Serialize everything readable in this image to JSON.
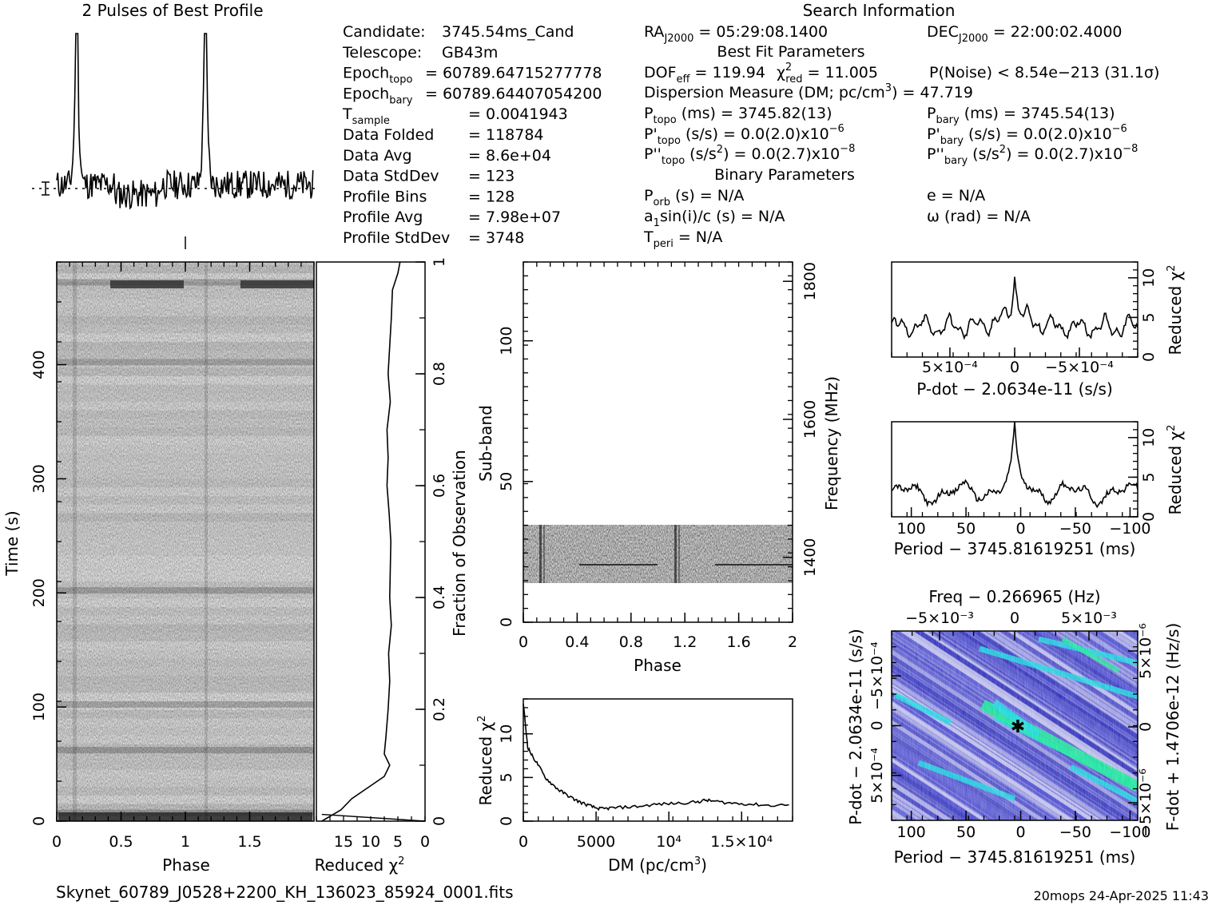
{
  "footer": {
    "filename": "Skynet_60789_J0528+2200_KH_136023_85924_0001.fits",
    "stamp": "20mops 24-Apr-2025 11:43"
  },
  "info": {
    "search_title": "Search Information",
    "col1": [
      {
        "label": "Candidate:",
        "sub": "",
        "value": "3745.54ms_Cand"
      },
      {
        "label": "Telescope:",
        "sub": "",
        "value": "GB43m"
      },
      {
        "label": "Epoch",
        "sub": "topo",
        "value": "= 60789.64715277778"
      },
      {
        "label": "Epoch",
        "sub": "bary",
        "value": "= 60789.64407054200"
      },
      {
        "label": "T",
        "sub": "sample",
        "value": "=   0.0041943"
      },
      {
        "label": "Data Folded",
        "sub": "",
        "value": "=   118784"
      },
      {
        "label": "Data Avg",
        "sub": "",
        "value": "=   8.6e+04"
      },
      {
        "label": "Data StdDev",
        "sub": "",
        "value": "=   123"
      },
      {
        "label": "Profile Bins",
        "sub": "",
        "value": "=   128"
      },
      {
        "label": "Profile Avg",
        "sub": "",
        "value": "=   7.98e+07"
      },
      {
        "label": "Profile StdDev",
        "sub": "",
        "value": "=   3748"
      }
    ],
    "ra": "RA",
    "ra_sub": "J2000",
    "ra_value": "= 05:29:08.1400",
    "dec": "DEC",
    "dec_sub": "J2000",
    "dec_value": "= 22:00:02.4000",
    "best_fit_title": "Best Fit Parameters",
    "dof": "DOF",
    "dof_sub": "eff",
    "dof_value": "= 119.94",
    "chi": "χ",
    "chi_sup": "2",
    "chi_sub": "red",
    "chi_value": "= 11.005",
    "pnoise": "P(Noise) < 8.54e−213   (31.1σ)",
    "dm_line": "Dispersion Measure (DM; pc/cm",
    "dm_sup": "3",
    "dm_value": ") = 47.719",
    "ptopo_label": "P",
    "ptopo_sub": "topo",
    "ptopo_value": "(ms)  =   3745.82(13)",
    "pbary_label": "P",
    "pbary_sub": "bary",
    "pbary_value": "(ms)  =   3745.54(13)",
    "pdtopo_label": "P'",
    "pdtopo_sub": "topo",
    "pdtopo_value": "(s/s) = 0.0(2.0)x10",
    "pdtopo_exp": "−6",
    "pdbary_label": "P'",
    "pdbary_sub": "bary",
    "pdbary_value": "(s/s) = 0.0(2.0)x10",
    "pdbary_exp": "−6",
    "pddtopo_label": "P''",
    "pddtopo_sub": "topo",
    "pddtopo_value": "(s/s",
    "pddtopo_sup": "2",
    "pddtopo_value2": ") = 0.0(2.7)x10",
    "pddtopo_exp": "−8",
    "pddbary_label": "P''",
    "pddbary_sub": "bary",
    "pddbary_value": "(s/s",
    "pddbary_sup": "2",
    "pddbary_value2": ") = 0.0(2.7)x10",
    "pddbary_exp": "−8",
    "binary_title": "Binary Parameters",
    "porb_label": "P",
    "porb_sub": "orb",
    "porb_value": "(s) = N/A",
    "e_line": "e = N/A",
    "a1_label": "a",
    "a1_sub": "1",
    "a1_value": "sin(i)/c (s) = N/A",
    "omega_line": "ω (rad) = N/A",
    "tperi_label": "T",
    "tperi_sub": "peri",
    "tperi_value": "= N/A"
  },
  "chart_data": [
    {
      "id": "profile",
      "type": "line",
      "title": "2 Pulses of Best Profile",
      "x": "phase 0–2 (two copies of the 128-bin profile)",
      "pulse_phases": [
        0.155,
        1.155
      ],
      "peak_value": 1.0,
      "baseline_value": 0.28,
      "noise_level": 0.05,
      "grid": false
    },
    {
      "id": "time-phase",
      "type": "heatmap",
      "xlabel": "Phase",
      "ylabel": "Time (s)",
      "xlim": [
        0,
        2
      ],
      "ylim": [
        0,
        490
      ],
      "x_ticks": [
        "0",
        "0.5",
        "1",
        "1.5"
      ],
      "y_ticks": [
        "0",
        "100",
        "200",
        "300",
        "400"
      ],
      "dark_rows_s": [
        5,
        60,
        100,
        200,
        400,
        470
      ]
    },
    {
      "id": "time-chi2",
      "type": "line",
      "xlabel": "Reduced χ²",
      "ylabel": "Fraction of Observation",
      "xlim": [
        20,
        0
      ],
      "ylim": [
        0,
        1
      ],
      "x_ticks": [
        "15",
        "10",
        "5",
        "0"
      ],
      "y_ticks": [
        "0",
        "0.2",
        "0.4",
        "0.6",
        "0.8",
        "1"
      ],
      "fraction": [
        0.0,
        0.02,
        0.04,
        0.06,
        0.08,
        0.1,
        0.12,
        0.15,
        0.2,
        0.25,
        0.3,
        0.35,
        0.4,
        0.45,
        0.5,
        0.55,
        0.6,
        0.65,
        0.7,
        0.75,
        0.8,
        0.85,
        0.9,
        0.95,
        0.98,
        1.0
      ],
      "chi2": [
        19.0,
        15.5,
        13.5,
        10.5,
        7.5,
        6.5,
        7.5,
        7.2,
        6.8,
        6.5,
        6.7,
        6.2,
        6.5,
        6.4,
        6.3,
        6.6,
        7.0,
        6.8,
        7.0,
        6.4,
        6.8,
        6.5,
        6.2,
        6.0,
        5.0,
        4.6
      ]
    },
    {
      "id": "subband-phase",
      "type": "heatmap",
      "xlabel": "Phase",
      "ylabel": "Sub-band",
      "y2label": "Frequency (MHz)",
      "xlim": [
        0,
        2
      ],
      "ylim": [
        0,
        128
      ],
      "y2lim": [
        1306,
        1828
      ],
      "x_ticks": [
        "0",
        "0.4",
        "0.8",
        "1.2",
        "1.6",
        "2"
      ],
      "y_ticks": [
        "0",
        "50",
        "100"
      ],
      "y2_ticks": [
        "1400",
        "1600",
        "1800"
      ],
      "data_band": [
        14,
        35
      ],
      "pulse_phases": [
        0.14,
        1.14
      ],
      "rfi_line_subband": 21
    },
    {
      "id": "dm-chi2",
      "type": "line",
      "xlabel": "DM (pc/cm³)",
      "ylabel": "Reduced χ²",
      "xlim": [
        0,
        18500
      ],
      "ylim": [
        0,
        14
      ],
      "x_ticks": [
        "0",
        "5000",
        "10⁴",
        "1.5×10⁴"
      ],
      "y_ticks": [
        "0",
        "5",
        "10"
      ],
      "x": [
        0,
        300,
        600,
        1000,
        1500,
        2000,
        2500,
        3000,
        3500,
        4000,
        4500,
        5000,
        5500,
        6000,
        7000,
        8000,
        9000,
        10000,
        11000,
        12000,
        12500,
        13000,
        14000,
        15000,
        16000,
        17000,
        18500
      ],
      "y": [
        13.5,
        8.5,
        7.5,
        6.5,
        5.0,
        4.2,
        3.5,
        3.0,
        2.5,
        2.1,
        1.8,
        1.5,
        1.4,
        1.5,
        1.6,
        1.7,
        1.9,
        2.0,
        2.1,
        2.2,
        2.4,
        2.3,
        2.1,
        2.0,
        1.9,
        1.8,
        1.9
      ]
    },
    {
      "id": "pdot-chi2",
      "type": "line",
      "xlabel": "P-dot − 2.0634e-11 (s/s)",
      "ylabel": "Reduced χ²",
      "xlim": [
        0.00095,
        -0.00095
      ],
      "ylim": [
        0,
        12
      ],
      "x_ticks": [
        "5×10⁻⁴",
        "0",
        "−5×10⁻⁴"
      ],
      "y_ticks": [
        "0",
        "5",
        "10"
      ],
      "peak": 11,
      "baseline": 3.8
    },
    {
      "id": "period-chi2",
      "type": "line",
      "xlabel": "Period − 3745.81619251 (ms)",
      "ylabel": "Reduced χ²",
      "xlim": [
        118,
        -107
      ],
      "ylim": [
        0,
        12
      ],
      "x_ticks": [
        "100",
        "50",
        "0",
        "−50",
        "−100"
      ],
      "y_ticks": [
        "0",
        "5",
        "10"
      ],
      "peak": 11,
      "baseline": 3.0
    },
    {
      "id": "p-pdot",
      "type": "heatmap",
      "title": "Freq − 0.266965 (Hz)",
      "xlabel": "Period − 3745.81619251 (ms)",
      "ylabel": "P-dot − 2.0634e-11 (s/s)",
      "y2label": "F-dot + 1.4706e-12 (Hz/s)",
      "xlim": [
        118,
        -107
      ],
      "ylim": [
        0.00095,
        -0.00095
      ],
      "x_ticks": [
        "100",
        "50",
        "0",
        "−50",
        "−100"
      ],
      "x2_ticks": [
        "−5×10⁻³",
        "0",
        "5×10⁻³"
      ],
      "y_ticks": [
        "−5×10⁻⁴",
        "0",
        "5×10⁻⁴"
      ],
      "y2_ticks": [
        "5×10⁻⁶",
        "0",
        "−5×10⁻⁶"
      ],
      "best": [
        0,
        0
      ],
      "colors": [
        "#7b7bd8",
        "#4a4ad0",
        "#2b2bb8",
        "#1ed8e0",
        "#1ee89a",
        "#c9c9ee"
      ]
    }
  ]
}
